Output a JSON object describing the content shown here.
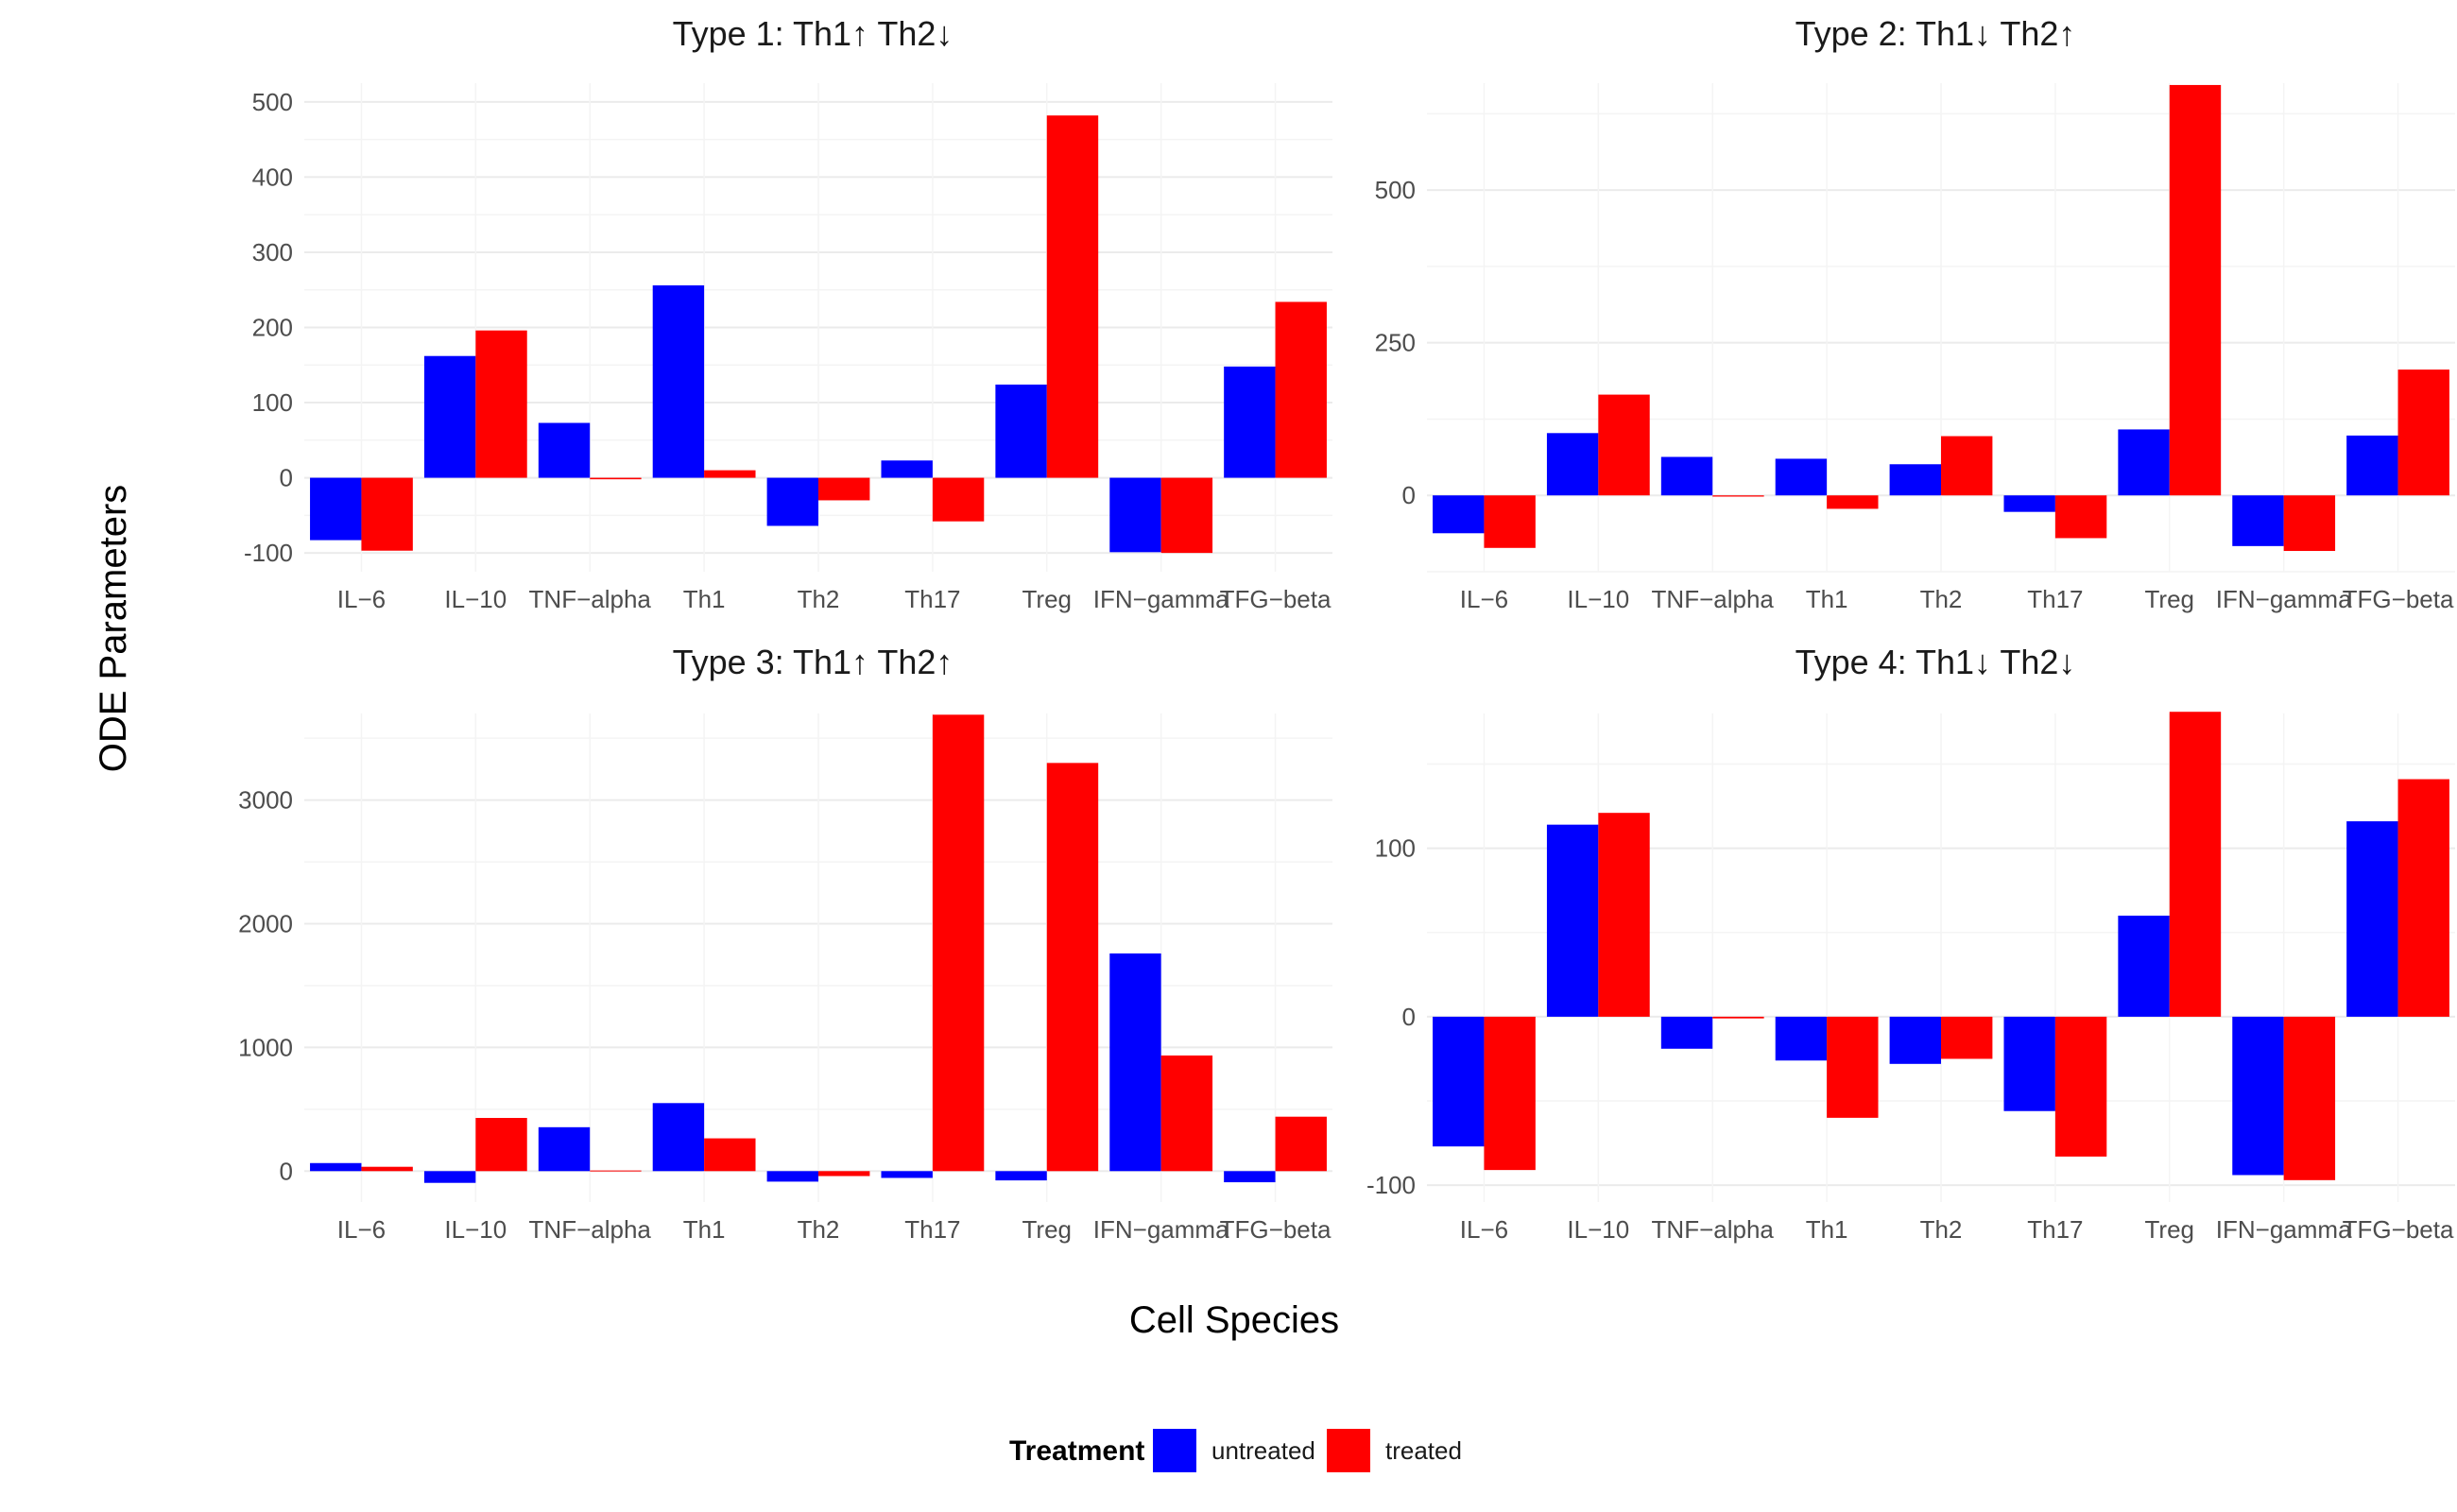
{
  "chart_data": {
    "type": "bar",
    "layout": "facet-grid-2x2",
    "xlabel": "Cell Species",
    "ylabel": "ODE Parameters",
    "legend": {
      "title": "Treatment",
      "placement": "bottom",
      "entries": [
        {
          "name": "untreated",
          "color": "#0000ff"
        },
        {
          "name": "treated",
          "color": "#ff0000"
        }
      ]
    },
    "categories": [
      "IL−6",
      "IL−10",
      "TNF−alpha",
      "Th1",
      "Th2",
      "Th17",
      "Treg",
      "IFN−gamma",
      "TFG−beta"
    ],
    "grid": true,
    "panels": [
      {
        "title": "Type 1: Th1↑ Th2↓",
        "ylim": [
          -125,
          525
        ],
        "yticks": [
          -100,
          0,
          100,
          200,
          300,
          400,
          500
        ],
        "series": [
          {
            "name": "untreated",
            "values": [
              -83,
              162,
              73,
              256,
              -64,
              23,
              124,
              -99,
              148
            ]
          },
          {
            "name": "treated",
            "values": [
              -97,
              196,
              -2,
              10,
              -30,
              -58,
              482,
              -100,
              234
            ]
          }
        ]
      },
      {
        "title": "Type 2: Th1↓ Th2↑",
        "ylim": [
          -125,
          675
        ],
        "yticks": [
          0,
          250,
          500
        ],
        "series": [
          {
            "name": "untreated",
            "values": [
              -62,
              102,
              63,
              60,
              51,
              -27,
              108,
              -83,
              98
            ]
          },
          {
            "name": "treated",
            "values": [
              -86,
              165,
              -2,
              -22,
              97,
              -70,
              672,
              -91,
              206
            ]
          }
        ]
      },
      {
        "title": "Type 3: Th1↑ Th2↑",
        "ylim": [
          -250,
          3700
        ],
        "yticks": [
          0,
          1000,
          2000,
          3000
        ],
        "series": [
          {
            "name": "untreated",
            "values": [
              65,
              -95,
              355,
              550,
              -85,
              -55,
              -75,
              1760,
              -90
            ]
          },
          {
            "name": "treated",
            "values": [
              35,
              430,
              5,
              265,
              -40,
              3690,
              3300,
              935,
              440
            ]
          }
        ]
      },
      {
        "title": "Type 4: Th1↓ Th2↓",
        "ylim": [
          -110,
          180
        ],
        "yticks": [
          -100,
          0,
          100
        ],
        "series": [
          {
            "name": "untreated",
            "values": [
              -77,
              114,
              -19,
              -26,
              -28,
              -56,
              60,
              -94,
              116
            ]
          },
          {
            "name": "treated",
            "values": [
              -91,
              121,
              -1,
              -60,
              -25,
              -83,
              181,
              -97,
              141
            ]
          }
        ]
      }
    ]
  }
}
